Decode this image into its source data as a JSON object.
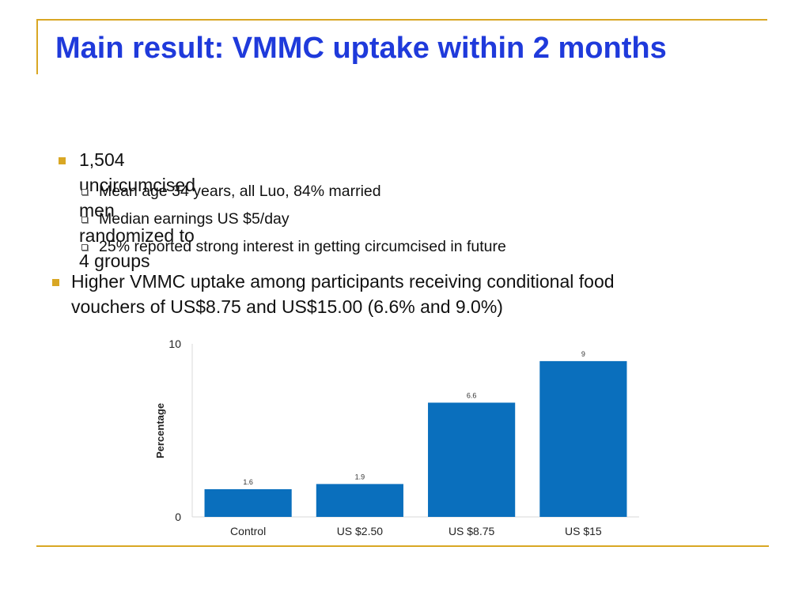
{
  "slide": {
    "title": "Main result: VMMC uptake within 2 months",
    "bullets": [
      {
        "text": "1,504 uncircumcised men randomized to 4 groups",
        "sub": [
          "Mean age 34 years, all Luo, 84% married",
          "Median earnings US $5/day",
          "25% reported strong interest in getting circumcised in future"
        ]
      },
      {
        "text_line1": "Higher VMMC uptake among participants receiving conditional food",
        "text_line2": "vouchers of US$8.75 and US$15.00 (6.6% and 9.0%)"
      }
    ],
    "colors": {
      "title": "#1f3adb",
      "accent": "#d9a724",
      "bar": "#0a6fbd"
    }
  },
  "chart_data": {
    "type": "bar",
    "categories": [
      "Control",
      "US $2.50",
      "US $8.75",
      "US $15"
    ],
    "values": [
      1.6,
      1.9,
      6.6,
      9
    ],
    "value_labels": [
      "1.6",
      "1.9",
      "6.6",
      "9"
    ],
    "title": "",
    "xlabel": "",
    "ylabel": "Percentage",
    "ylim": [
      0,
      10
    ],
    "yticks": [
      "0",
      "10"
    ],
    "grid": false,
    "legend": "none"
  }
}
